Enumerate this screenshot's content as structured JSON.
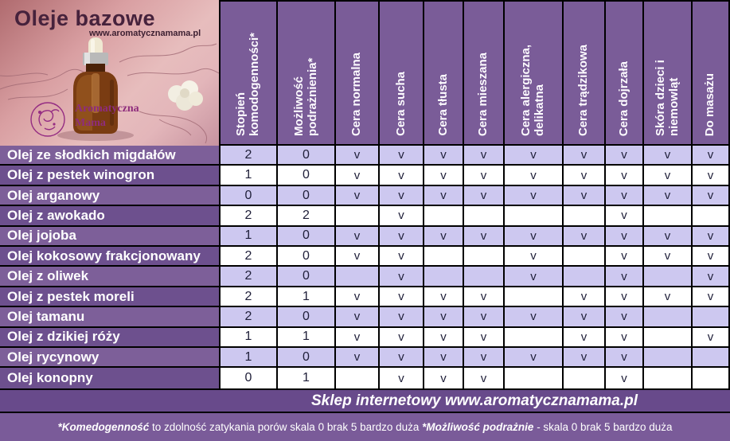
{
  "photo": {
    "title": "Oleje bazowe",
    "website": "www.aromatycznamama.pl",
    "logo_line1": "Aromatyczna",
    "logo_line2": "Mama"
  },
  "chart_data": {
    "type": "table",
    "title": "Oleje bazowe",
    "columns": [
      "Stopień komodogenności*",
      "Możliwość podrażnienia*",
      "Cera normalna",
      "Cera sucha",
      "Cera tłusta",
      "Cera mieszana",
      "Cera alergiczna, delikatna",
      "Cera trądzikowa",
      "Cera dojrzała",
      "Skóra dzieci i niemowląt",
      "Do masażu"
    ],
    "rows": [
      {
        "name": "Olej ze słodkich migdałów",
        "values": [
          "2",
          "0",
          "v",
          "v",
          "v",
          "v",
          "v",
          "v",
          "v",
          "v",
          "v"
        ]
      },
      {
        "name": "Olej z pestek winogron",
        "values": [
          "1",
          "0",
          "v",
          "v",
          "v",
          "v",
          "v",
          "v",
          "v",
          "v",
          "v"
        ]
      },
      {
        "name": "Olej arganowy",
        "values": [
          "0",
          "0",
          "v",
          "v",
          "v",
          "v",
          "v",
          "v",
          "v",
          "v",
          "v"
        ]
      },
      {
        "name": "Olej z awokado",
        "values": [
          "2",
          "2",
          "",
          "v",
          "",
          "",
          "",
          "",
          "v",
          "",
          ""
        ]
      },
      {
        "name": "Olej jojoba",
        "values": [
          "1",
          "0",
          "v",
          "v",
          "v",
          "v",
          "v",
          "v",
          "v",
          "v",
          "v"
        ]
      },
      {
        "name": "Olej kokosowy frakcjonowany",
        "values": [
          "2",
          "0",
          "v",
          "v",
          "",
          "",
          "v",
          "",
          "v",
          "v",
          "v"
        ]
      },
      {
        "name": "Olej z oliwek",
        "values": [
          "2",
          "0",
          "",
          "v",
          "",
          "",
          "v",
          "",
          "v",
          "",
          "v"
        ]
      },
      {
        "name": "Olej z pestek moreli",
        "values": [
          "2",
          "1",
          "v",
          "v",
          "v",
          "v",
          "",
          "v",
          "v",
          "v",
          "v"
        ]
      },
      {
        "name": "Olej tamanu",
        "values": [
          "2",
          "0",
          "v",
          "v",
          "v",
          "v",
          "v",
          "v",
          "v",
          "",
          ""
        ]
      },
      {
        "name": "Olej z dzikiej róży",
        "values": [
          "1",
          "1",
          "v",
          "v",
          "v",
          "v",
          "",
          "v",
          "v",
          "",
          "v"
        ]
      },
      {
        "name": "Olej rycynowy",
        "values": [
          "1",
          "0",
          "v",
          "v",
          "v",
          "v",
          "v",
          "v",
          "v",
          "",
          ""
        ]
      },
      {
        "name": "Olej konopny",
        "values": [
          "0",
          "1",
          "",
          "v",
          "v",
          "v",
          "",
          "",
          "v",
          "",
          ""
        ]
      }
    ]
  },
  "shop_bar": {
    "text": "Sklep internetowy www.aromatycznamama.pl"
  },
  "note": {
    "part1_bold": "*Komedogenność",
    "part1": " to zdolność zatykania porów skala 0 brak 5 bardzo duża ",
    "part2_bold": "*Możliwość podrażnie",
    "part2": " - skala 0 brak 5 bardzo duża"
  },
  "colors": {
    "header_purple": "#7a5c98",
    "label_row_light": "#7d5f99",
    "label_row_dark": "#6d508e",
    "cell_lavender": "#cdc8f0",
    "cell_white": "#ffffff",
    "shop_bar": "#684a8b",
    "footer_bar": "#7a5b99",
    "logo_magenta": "#952d83",
    "title_dark": "#46223c"
  }
}
